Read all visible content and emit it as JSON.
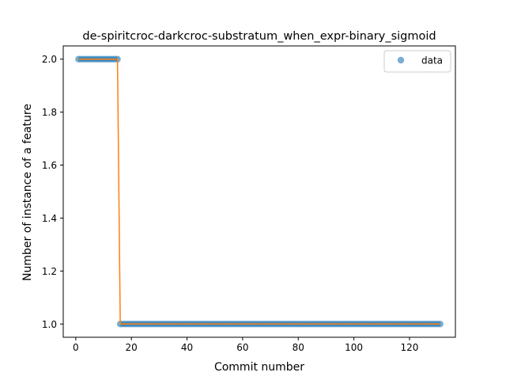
{
  "chart_data": {
    "type": "scatter",
    "title": "de-spiritcroc-darkcroc-substratum_when_expr-binary_sigmoid",
    "xlabel": "Commit number",
    "ylabel": "Number of instance of a feature",
    "xlim": [
      -4.5,
      136.5
    ],
    "ylim": [
      0.95,
      2.05
    ],
    "xticks": [
      0,
      20,
      40,
      60,
      80,
      100,
      120
    ],
    "yticks": [
      1.0,
      1.2,
      1.4,
      1.6,
      1.8,
      2.0
    ],
    "xtick_labels": [
      "0",
      "20",
      "40",
      "60",
      "80",
      "100",
      "120"
    ],
    "ytick_labels": [
      "1.0",
      "1.2",
      "1.4",
      "1.6",
      "1.8",
      "2.0"
    ],
    "grid": false,
    "legend": {
      "placement": "upper right",
      "entries": [
        "data"
      ]
    },
    "series": [
      {
        "name": "data",
        "kind": "points",
        "color": "#1f77b4",
        "segments": [
          {
            "x_start": 1,
            "x_end": 15,
            "y": 2.0
          },
          {
            "x_start": 16,
            "x_end": 131,
            "y": 1.0
          }
        ]
      },
      {
        "kind": "line",
        "color": "#ff7f0e",
        "x": [
          1,
          15,
          16,
          131
        ],
        "y": [
          2.0,
          2.0,
          1.0,
          1.0
        ]
      }
    ]
  }
}
